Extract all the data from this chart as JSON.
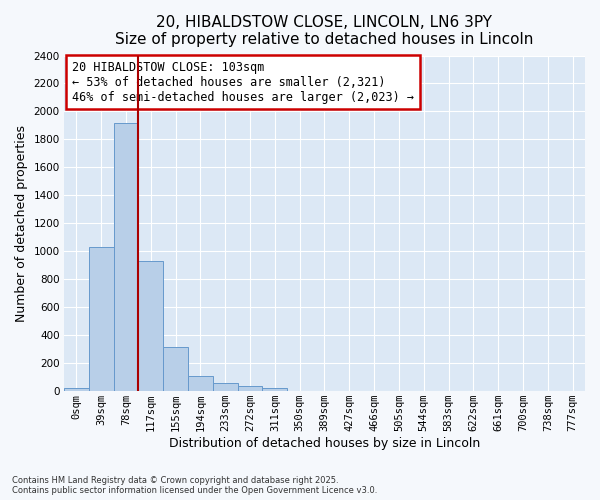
{
  "title_line1": "20, HIBALDSTOW CLOSE, LINCOLN, LN6 3PY",
  "title_line2": "Size of property relative to detached houses in Lincoln",
  "xlabel": "Distribution of detached houses by size in Lincoln",
  "ylabel": "Number of detached properties",
  "bar_labels": [
    "0sqm",
    "39sqm",
    "78sqm",
    "117sqm",
    "155sqm",
    "194sqm",
    "233sqm",
    "272sqm",
    "311sqm",
    "350sqm",
    "389sqm",
    "427sqm",
    "466sqm",
    "505sqm",
    "544sqm",
    "583sqm",
    "622sqm",
    "661sqm",
    "700sqm",
    "738sqm",
    "777sqm"
  ],
  "bar_values": [
    20,
    1030,
    1920,
    930,
    315,
    110,
    60,
    40,
    20,
    0,
    0,
    0,
    0,
    0,
    0,
    0,
    0,
    0,
    0,
    0,
    0
  ],
  "bar_color": "#b8cfe8",
  "bar_edge_color": "#6699cc",
  "background_color": "#dce8f5",
  "grid_color": "#ffffff",
  "fig_bg_color": "#f5f8fc",
  "ylim": [
    0,
    2400
  ],
  "yticks": [
    0,
    200,
    400,
    600,
    800,
    1000,
    1200,
    1400,
    1600,
    1800,
    2000,
    2200,
    2400
  ],
  "vline_x": 2.5,
  "vline_color": "#aa0000",
  "annotation_text_line1": "20 HIBALDSTOW CLOSE: 103sqm",
  "annotation_text_line2": "← 53% of detached houses are smaller (2,321)",
  "annotation_text_line3": "46% of semi-detached houses are larger (2,023) →",
  "annotation_fontsize": 8.5,
  "annotation_box_color": "#ffffff",
  "annotation_border_color": "#cc0000",
  "footnote_line1": "Contains HM Land Registry data © Crown copyright and database right 2025.",
  "footnote_line2": "Contains public sector information licensed under the Open Government Licence v3.0.",
  "title_fontsize": 11,
  "axis_label_fontsize": 9,
  "tick_fontsize": 7.5
}
